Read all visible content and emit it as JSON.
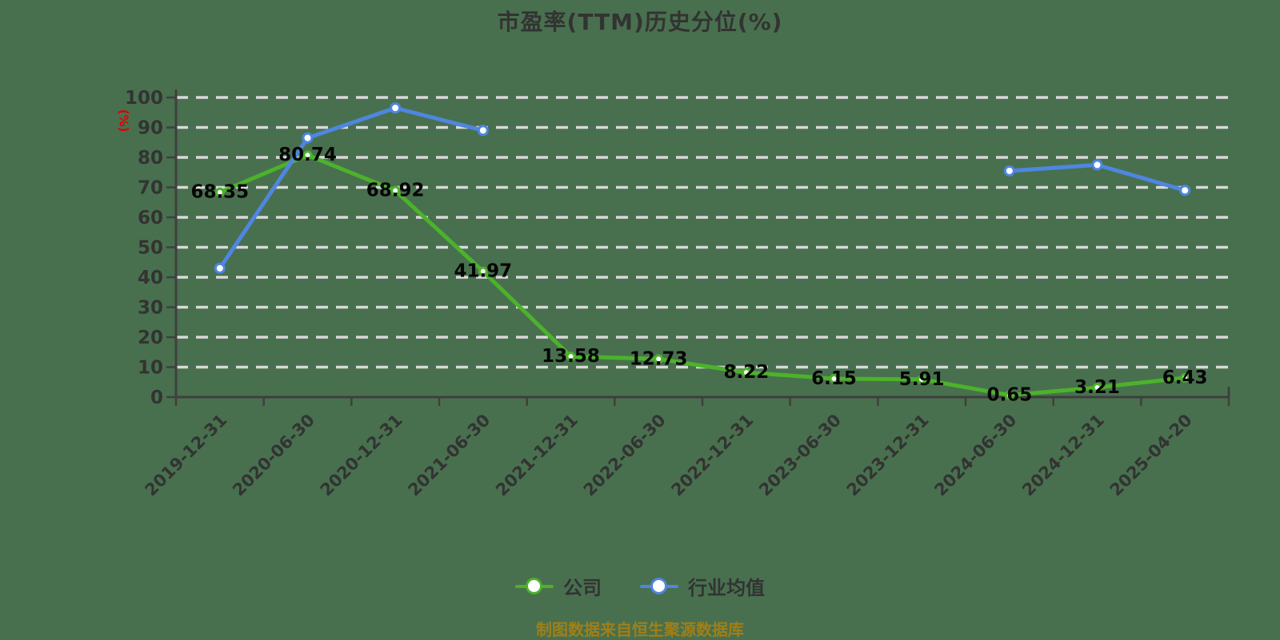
{
  "title": "市盈率(TTM)历史分位(%)",
  "y_axis_unit": "(%)",
  "source_note": "制图数据来自恒生聚源数据库",
  "colors": {
    "background": "#48704e",
    "grid": "#d9d9d9",
    "axis": "#3f3f3f",
    "tick_label": "#333333",
    "data_label": "#060606",
    "title": "#333333",
    "unit_label": "#e00000",
    "source_note": "#a07f18",
    "company": "#4cb22b",
    "industry": "#4e86e0"
  },
  "legend": {
    "items": [
      {
        "id": "company",
        "label": "公司",
        "color": "#4cb22b"
      },
      {
        "id": "industry",
        "label": "行业均值",
        "color": "#4e86e0"
      }
    ]
  },
  "chart_data": {
    "type": "line",
    "title": "市盈率(TTM)历史分位(%)",
    "ylabel": "(%)",
    "ylim": [
      0,
      100
    ],
    "y_ticks": [
      0,
      10,
      20,
      30,
      40,
      50,
      60,
      70,
      80,
      90,
      100
    ],
    "grid": "horizontal dashed",
    "legend_position": "bottom",
    "categories": [
      "2019-12-31",
      "2020-06-30",
      "2020-12-31",
      "2021-06-30",
      "2021-12-31",
      "2022-06-30",
      "2022-12-31",
      "2023-06-30",
      "2023-12-31",
      "2024-06-30",
      "2024-12-31",
      "2025-04-20"
    ],
    "series": [
      {
        "name": "公司",
        "color": "#4cb22b",
        "show_labels": true,
        "values": [
          68.35,
          80.74,
          68.92,
          41.97,
          13.58,
          12.73,
          8.22,
          6.15,
          5.91,
          0.65,
          3.21,
          6.43
        ]
      },
      {
        "name": "行业均值",
        "color": "#4e86e0",
        "show_labels": false,
        "values": [
          43,
          86.5,
          96.5,
          89,
          null,
          null,
          null,
          null,
          null,
          75.5,
          77.5,
          69
        ]
      }
    ]
  }
}
